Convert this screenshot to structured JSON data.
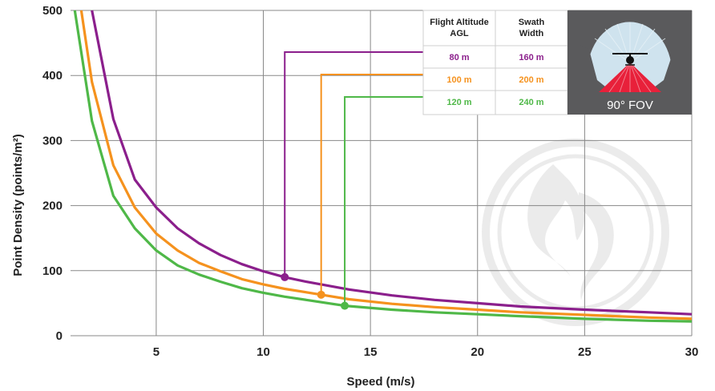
{
  "chart_data": {
    "type": "line",
    "title": "",
    "xlabel": "Speed (m/s)",
    "ylabel": "Point Density (points/m²)",
    "xlim": [
      1,
      30
    ],
    "ylim": [
      0,
      500
    ],
    "xticks": [
      5,
      10,
      15,
      20,
      25,
      30
    ],
    "yticks": [
      0,
      100,
      200,
      300,
      400,
      500
    ],
    "grid": true,
    "series": [
      {
        "name": "80 m",
        "color": "#8b1f8c",
        "x": [
          2,
          3,
          4,
          5,
          6,
          7,
          8,
          9,
          10,
          11,
          12,
          14,
          16,
          18,
          20,
          22,
          25,
          28,
          30
        ],
        "y": [
          500,
          333,
          240,
          197,
          165,
          142,
          124,
          110,
          99,
          90,
          83,
          71,
          62,
          55,
          50,
          45,
          40,
          36,
          33
        ]
      },
      {
        "name": "100 m",
        "color": "#f5921e",
        "x": [
          1.5,
          2,
          3,
          4,
          5,
          6,
          7,
          8,
          9,
          10,
          11,
          12.7,
          14,
          16,
          18,
          20,
          22,
          25,
          28,
          30
        ],
        "y": [
          500,
          390,
          262,
          197,
          157,
          131,
          112,
          99,
          87,
          79,
          72,
          63,
          56,
          49,
          44,
          40,
          36,
          32,
          28,
          26
        ]
      },
      {
        "name": "120 m",
        "color": "#4fb848",
        "x": [
          1.2,
          2,
          3,
          4,
          5,
          6,
          7,
          8,
          9,
          10,
          11,
          12,
          13.8,
          16,
          18,
          20,
          22,
          25,
          28,
          30
        ],
        "y": [
          500,
          330,
          215,
          165,
          131,
          108,
          94,
          83,
          73,
          66,
          60,
          55,
          46,
          40,
          36,
          33,
          30,
          26,
          23,
          22
        ]
      }
    ],
    "markers": [
      {
        "series": "80 m",
        "x": 11,
        "y": 90
      },
      {
        "series": "100 m",
        "x": 12.7,
        "y": 63
      },
      {
        "series": "120 m",
        "x": 13.8,
        "y": 46
      }
    ]
  },
  "table": {
    "headers": [
      "Flight Altitude AGL",
      "Swath Width"
    ],
    "rows": [
      {
        "altitude": "80 m",
        "swath": "160 m",
        "color": "#8b1f8c"
      },
      {
        "altitude": "100 m",
        "swath": "200 m",
        "color": "#f5921e"
      },
      {
        "altitude": "120 m",
        "swath": "240 m",
        "color": "#4fb848"
      }
    ]
  },
  "fov_label": "90° FOV",
  "colors": {
    "grid": "#888888",
    "fov_bg": "#5a5a5c",
    "fov_sky": "#cfe3ee",
    "fov_beam": "#e8203a",
    "watermark": "#e6e6e6"
  }
}
